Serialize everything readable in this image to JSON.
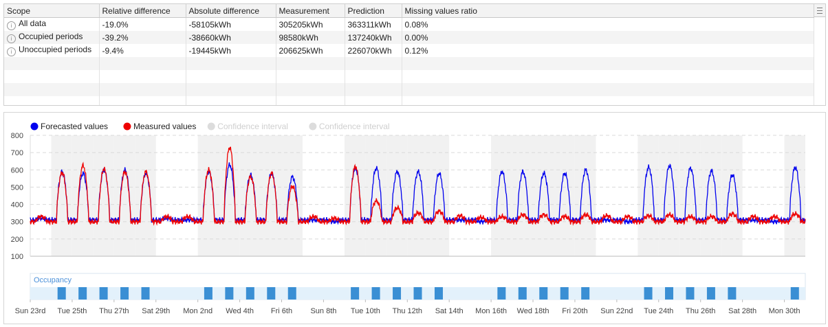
{
  "table": {
    "columns": [
      "Scope",
      "Relative difference",
      "Absolute difference",
      "Measurement",
      "Prediction",
      "Missing values ratio"
    ],
    "rows": [
      [
        "All data",
        "-19.0%",
        "-58105kWh",
        "305205kWh",
        "363311kWh",
        "0.08%"
      ],
      [
        "Occupied periods",
        "-39.2%",
        "-38660kWh",
        "98580kWh",
        "137240kWh",
        "0.00%"
      ],
      [
        "Unoccupied periods",
        "-9.4%",
        "-19445kWh",
        "206625kWh",
        "226070kWh",
        "0.12%"
      ]
    ],
    "info_icon": "info-icon",
    "menu_icon": "menu-icon"
  },
  "chart_data": {
    "type": "line",
    "legend": [
      {
        "name": "Forecasted values",
        "color": "#0000ee",
        "active": true
      },
      {
        "name": "Measured values",
        "color": "#ee0000",
        "active": true
      },
      {
        "name": "Confidence interval",
        "color": "#dcdcdc",
        "active": false
      },
      {
        "name": "Confidence interval",
        "color": "#dcdcdc",
        "active": false
      }
    ],
    "yticks": [
      "800",
      "700",
      "600",
      "500",
      "400",
      "300",
      "200",
      "100"
    ],
    "ylim": [
      100,
      800
    ],
    "xlim_days": [
      0,
      37
    ],
    "xticks": [
      {
        "label": "Sun 23rd",
        "day": 0
      },
      {
        "label": "Tue 25th",
        "day": 2
      },
      {
        "label": "Thu 27th",
        "day": 4
      },
      {
        "label": "Sat 29th",
        "day": 6
      },
      {
        "label": "Mon 2nd",
        "day": 8
      },
      {
        "label": "Wed 4th",
        "day": 10
      },
      {
        "label": "Fri 6th",
        "day": 12
      },
      {
        "label": "Sun 8th",
        "day": 14
      },
      {
        "label": "Tue 10th",
        "day": 16
      },
      {
        "label": "Thu 12th",
        "day": 18
      },
      {
        "label": "Sat 14th",
        "day": 20
      },
      {
        "label": "Mon 16th",
        "day": 22
      },
      {
        "label": "Wed 18th",
        "day": 24
      },
      {
        "label": "Fri 20th",
        "day": 26
      },
      {
        "label": "Sun 22nd",
        "day": 28
      },
      {
        "label": "Tue 24th",
        "day": 30
      },
      {
        "label": "Thu 26th",
        "day": 32
      },
      {
        "label": "Sat 28th",
        "day": 34
      },
      {
        "label": "Mon 30th",
        "day": 36
      }
    ],
    "occupancy_label": "Occupancy",
    "occupied_days": [
      1,
      2,
      3,
      4,
      5,
      8,
      9,
      10,
      11,
      12,
      15,
      16,
      17,
      18,
      19,
      22,
      23,
      24,
      25,
      26,
      29,
      30,
      31,
      32,
      33,
      36
    ],
    "series": [
      {
        "name": "Forecasted values",
        "color": "#0000ee",
        "baseline": 310,
        "daily_peaks": [
          320,
          590,
          580,
          600,
          600,
          580,
          320,
          310,
          590,
          630,
          570,
          580,
          560,
          310,
          300,
          610,
          610,
          590,
          590,
          580,
          310,
          300,
          590,
          590,
          580,
          580,
          600,
          310,
          300,
          615,
          625,
          610,
          595,
          570,
          310,
          300,
          615
        ]
      },
      {
        "name": "Measured values",
        "color": "#ee0000",
        "baseline": 300,
        "daily_peaks": [
          330,
          585,
          625,
          605,
          590,
          590,
          330,
          330,
          600,
          730,
          560,
          580,
          505,
          330,
          320,
          620,
          420,
          380,
          350,
          360,
          335,
          325,
          330,
          340,
          340,
          330,
          340,
          335,
          330,
          335,
          340,
          330,
          330,
          345,
          330,
          330,
          345
        ]
      }
    ]
  }
}
